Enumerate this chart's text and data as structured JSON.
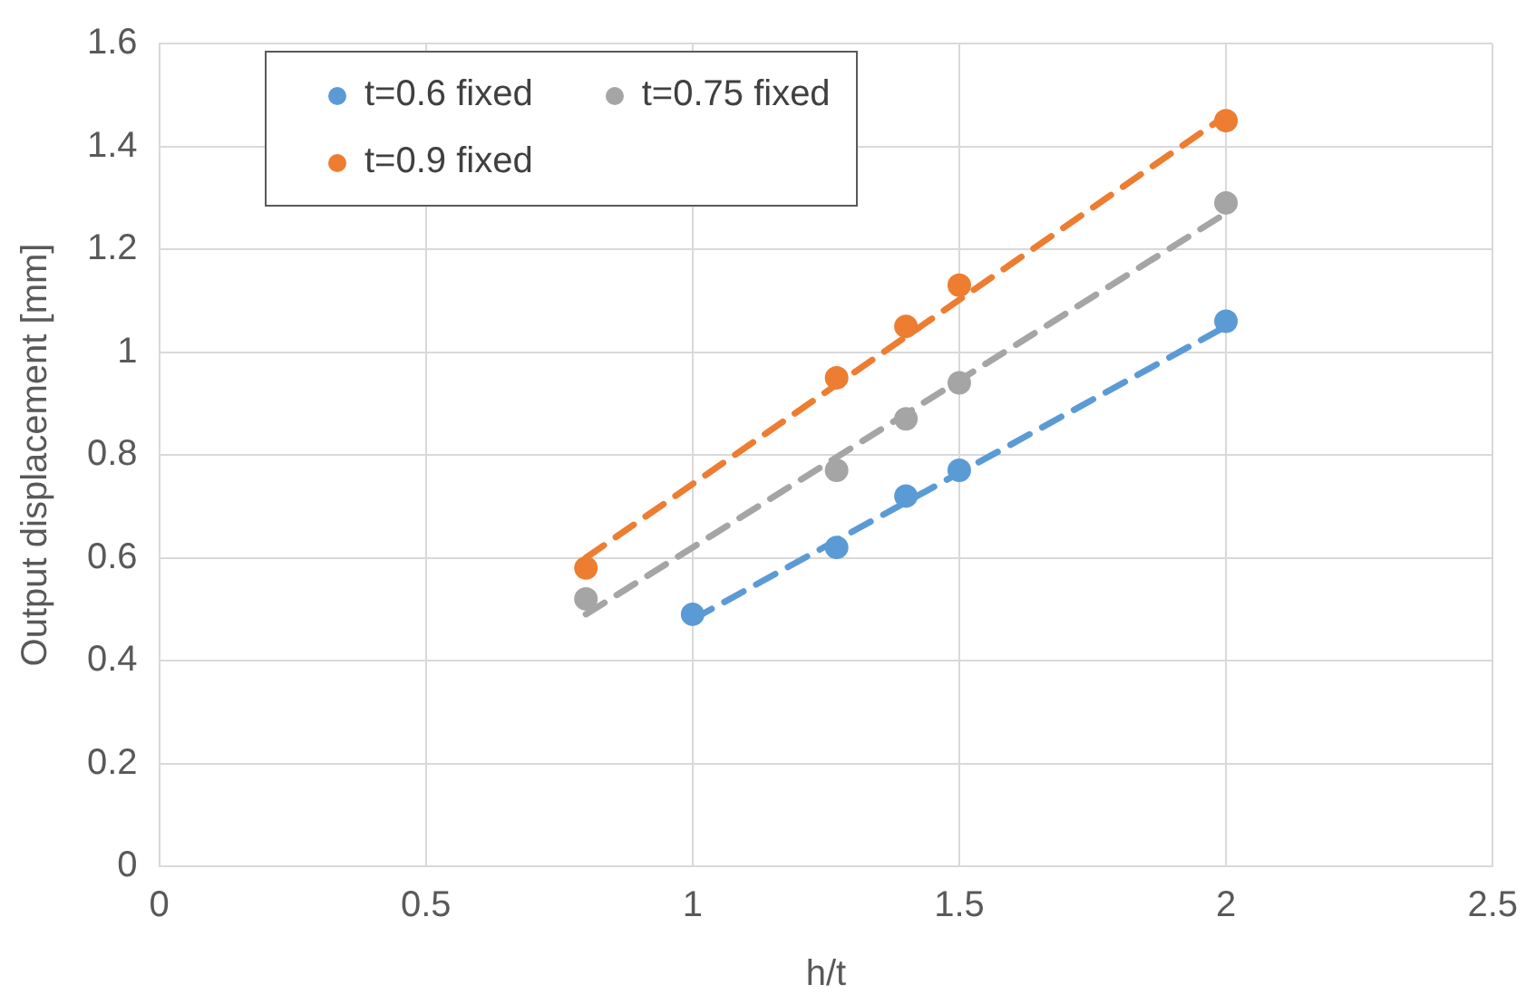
{
  "chart_data": {
    "type": "scatter",
    "xlabel": "h/t",
    "ylabel": "Output displacement [mm]",
    "xlim": [
      0,
      2.5
    ],
    "xticks": [
      0,
      0.5,
      1,
      1.5,
      2,
      2.5
    ],
    "ylim": [
      0,
      1.6
    ],
    "yticks": [
      0,
      0.2,
      0.4,
      0.6,
      0.8,
      1,
      1.2,
      1.4,
      1.6
    ],
    "grid": true,
    "legend": "top left",
    "marker": "circle",
    "series": [
      {
        "name": "t=0.6 fixed",
        "color": "#5b9bd5",
        "x": [
          1,
          1.27,
          1.4,
          1.5,
          2
        ],
        "values": [
          0.49,
          0.62,
          0.72,
          0.77,
          1.06
        ]
      },
      {
        "name": "t=0.75 fixed",
        "color": "#a5a5a5",
        "x": [
          0.8,
          1.27,
          1.4,
          1.5,
          2
        ],
        "values": [
          0.52,
          0.77,
          0.87,
          0.94,
          1.29
        ]
      },
      {
        "name": "t=0.9 fixed",
        "color": "#ed7d31",
        "x": [
          0.8,
          1.27,
          1.4,
          1.5,
          2
        ],
        "values": [
          0.58,
          0.95,
          1.05,
          1.13,
          1.45
        ]
      },
      {
        "type": "line",
        "color": "#5b9bd5",
        "line_style": "dashed",
        "marker": "none",
        "x": [
          1,
          2
        ],
        "values": [
          0.48,
          1.05
        ]
      },
      {
        "type": "line",
        "color": "#a5a5a5",
        "line_style": "dashed",
        "marker": "none",
        "x": [
          0.8,
          2
        ],
        "values": [
          0.49,
          1.27
        ]
      },
      {
        "type": "line",
        "color": "#ed7d31",
        "line_style": "dashed",
        "marker": "none",
        "x": [
          0.8,
          2
        ],
        "values": [
          0.6,
          1.46
        ]
      }
    ]
  }
}
